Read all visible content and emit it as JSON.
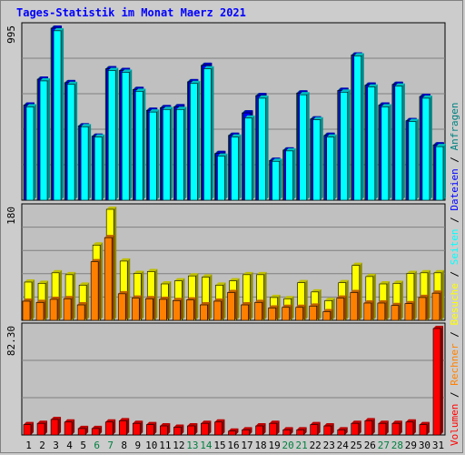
{
  "title": "Tages-Statistik im Monat Maerz 2021",
  "colors": {
    "background": "#cccccc",
    "plot_bg": "#c0c0c0",
    "grid": "#808080",
    "hits": "#008080",
    "files": "#0000ff",
    "pages": "#00ffff",
    "visits": "#ffff00",
    "sites": "#ff8000",
    "volume": "#ff0000",
    "weekend": "#008040",
    "weekday": "#000000"
  },
  "chart_data": [
    {
      "type": "bar",
      "name_panel": "hits-files-pages",
      "axis_max_label": "995",
      "ylim": [
        0,
        995
      ],
      "categories": [
        "1",
        "2",
        "3",
        "4",
        "5",
        "6",
        "7",
        "8",
        "9",
        "10",
        "11",
        "12",
        "13",
        "14",
        "15",
        "16",
        "17",
        "18",
        "19",
        "20",
        "21",
        "22",
        "23",
        "24",
        "25",
        "26",
        "27",
        "28",
        "29",
        "30",
        "31"
      ],
      "series": [
        {
          "name": "Anfragen",
          "color": "#008080",
          "values": [
            550,
            700,
            995,
            680,
            430,
            370,
            760,
            750,
            640,
            520,
            535,
            540,
            685,
            780,
            270,
            375,
            505,
            605,
            230,
            290,
            620,
            470,
            375,
            635,
            840,
            665,
            550,
            670,
            460,
            600,
            320
          ]
        },
        {
          "name": "Dateien",
          "color": "#0000ff",
          "values": [
            550,
            700,
            995,
            680,
            430,
            370,
            760,
            750,
            640,
            520,
            535,
            540,
            685,
            780,
            270,
            375,
            505,
            605,
            230,
            290,
            620,
            470,
            375,
            635,
            840,
            665,
            550,
            670,
            460,
            600,
            320
          ]
        },
        {
          "name": "Seiten",
          "color": "#00ffff",
          "values": [
            540,
            690,
            980,
            670,
            425,
            365,
            750,
            740,
            630,
            510,
            525,
            525,
            675,
            760,
            255,
            365,
            475,
            590,
            225,
            285,
            610,
            465,
            365,
            625,
            835,
            655,
            540,
            660,
            455,
            590,
            310
          ]
        }
      ]
    },
    {
      "type": "bar",
      "name_panel": "visits-sites",
      "axis_max_label": "180",
      "ylim": [
        0,
        180
      ],
      "categories": [
        "1",
        "2",
        "3",
        "4",
        "5",
        "6",
        "7",
        "8",
        "9",
        "10",
        "11",
        "12",
        "13",
        "14",
        "15",
        "16",
        "17",
        "18",
        "19",
        "20",
        "21",
        "22",
        "23",
        "24",
        "25",
        "26",
        "27",
        "28",
        "29",
        "30",
        "31"
      ],
      "series": [
        {
          "name": "Besuche",
          "color": "#ffff00",
          "values": [
            62,
            60,
            77,
            74,
            57,
            122,
            180,
            96,
            76,
            79,
            59,
            64,
            72,
            70,
            57,
            64,
            74,
            74,
            37,
            35,
            61,
            46,
            32,
            61,
            89,
            71,
            59,
            60,
            76,
            77,
            77
          ]
        },
        {
          "name": "Rechner",
          "color": "#ff8000",
          "values": [
            31,
            29,
            34,
            35,
            25,
            95,
            134,
            43,
            36,
            35,
            34,
            32,
            33,
            25,
            31,
            45,
            25,
            29,
            20,
            21,
            21,
            23,
            14,
            36,
            45,
            28,
            28,
            24,
            27,
            37,
            44
          ]
        }
      ]
    },
    {
      "type": "bar",
      "name_panel": "volume",
      "axis_max_label": "82.30",
      "ylim": [
        0,
        82.3
      ],
      "categories": [
        "1",
        "2",
        "3",
        "4",
        "5",
        "6",
        "7",
        "8",
        "9",
        "10",
        "11",
        "12",
        "13",
        "14",
        "15",
        "16",
        "17",
        "18",
        "19",
        "20",
        "21",
        "22",
        "23",
        "24",
        "25",
        "26",
        "27",
        "28",
        "29",
        "30",
        "31"
      ],
      "series": [
        {
          "name": "Volumen",
          "color": "#ff0000",
          "values": [
            8,
            9,
            12,
            10,
            5,
            5,
            10,
            11,
            9,
            8,
            7,
            6,
            7,
            9,
            10,
            3,
            4,
            7,
            9,
            4,
            4,
            8,
            7,
            4,
            9,
            11,
            9,
            9,
            10,
            8,
            82.3
          ]
        }
      ]
    }
  ],
  "day_labels": [
    "1",
    "2",
    "3",
    "4",
    "5",
    "6",
    "7",
    "8",
    "9",
    "10",
    "11",
    "12",
    "13",
    "14",
    "15",
    "16",
    "17",
    "18",
    "19",
    "20",
    "21",
    "22",
    "23",
    "24",
    "25",
    "26",
    "27",
    "28",
    "29",
    "30",
    "31"
  ],
  "weekend_days": [
    "6",
    "7",
    "13",
    "14",
    "20",
    "21",
    "27",
    "28"
  ],
  "legend": [
    {
      "text": "Volumen",
      "color": "#ff0000"
    },
    {
      "text": "Rechner",
      "color": "#ff8000"
    },
    {
      "text": "Besuche",
      "color": "#ffff00"
    },
    {
      "text": "Seiten",
      "color": "#00ffff"
    },
    {
      "text": "Dateien",
      "color": "#0000ff"
    },
    {
      "text": "Anfragen",
      "color": "#008080"
    }
  ],
  "legend_separator": " / "
}
